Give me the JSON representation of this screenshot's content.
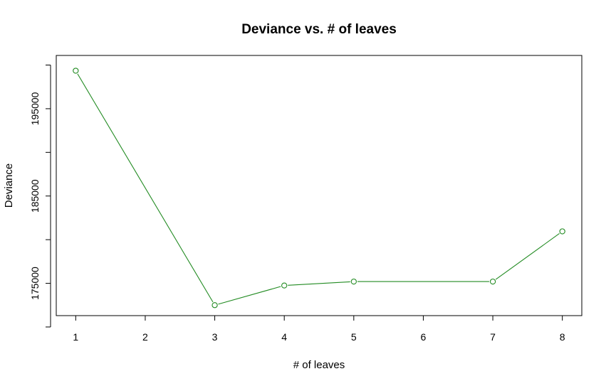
{
  "chart_data": {
    "type": "line",
    "title": "Deviance vs. # of leaves",
    "xlabel": "# of leaves",
    "ylabel": "Deviance",
    "x_ticks": [
      "1",
      "2",
      "3",
      "4",
      "5",
      "6",
      "7",
      "8"
    ],
    "y_ticks": [
      "175000",
      "185000",
      "195000"
    ],
    "y_minor_ticks": [
      170000,
      180000,
      190000,
      200000
    ],
    "xlim": [
      0.72,
      8.28
    ],
    "ylim": [
      171300,
      201100
    ],
    "grid": false,
    "series": [
      {
        "x": [
          1,
          3,
          4,
          5,
          7,
          8
        ],
        "y": [
          199350,
          172500,
          174750,
          175200,
          175200,
          180950
        ],
        "color": "#228B22",
        "marker": "open-circle"
      }
    ]
  }
}
